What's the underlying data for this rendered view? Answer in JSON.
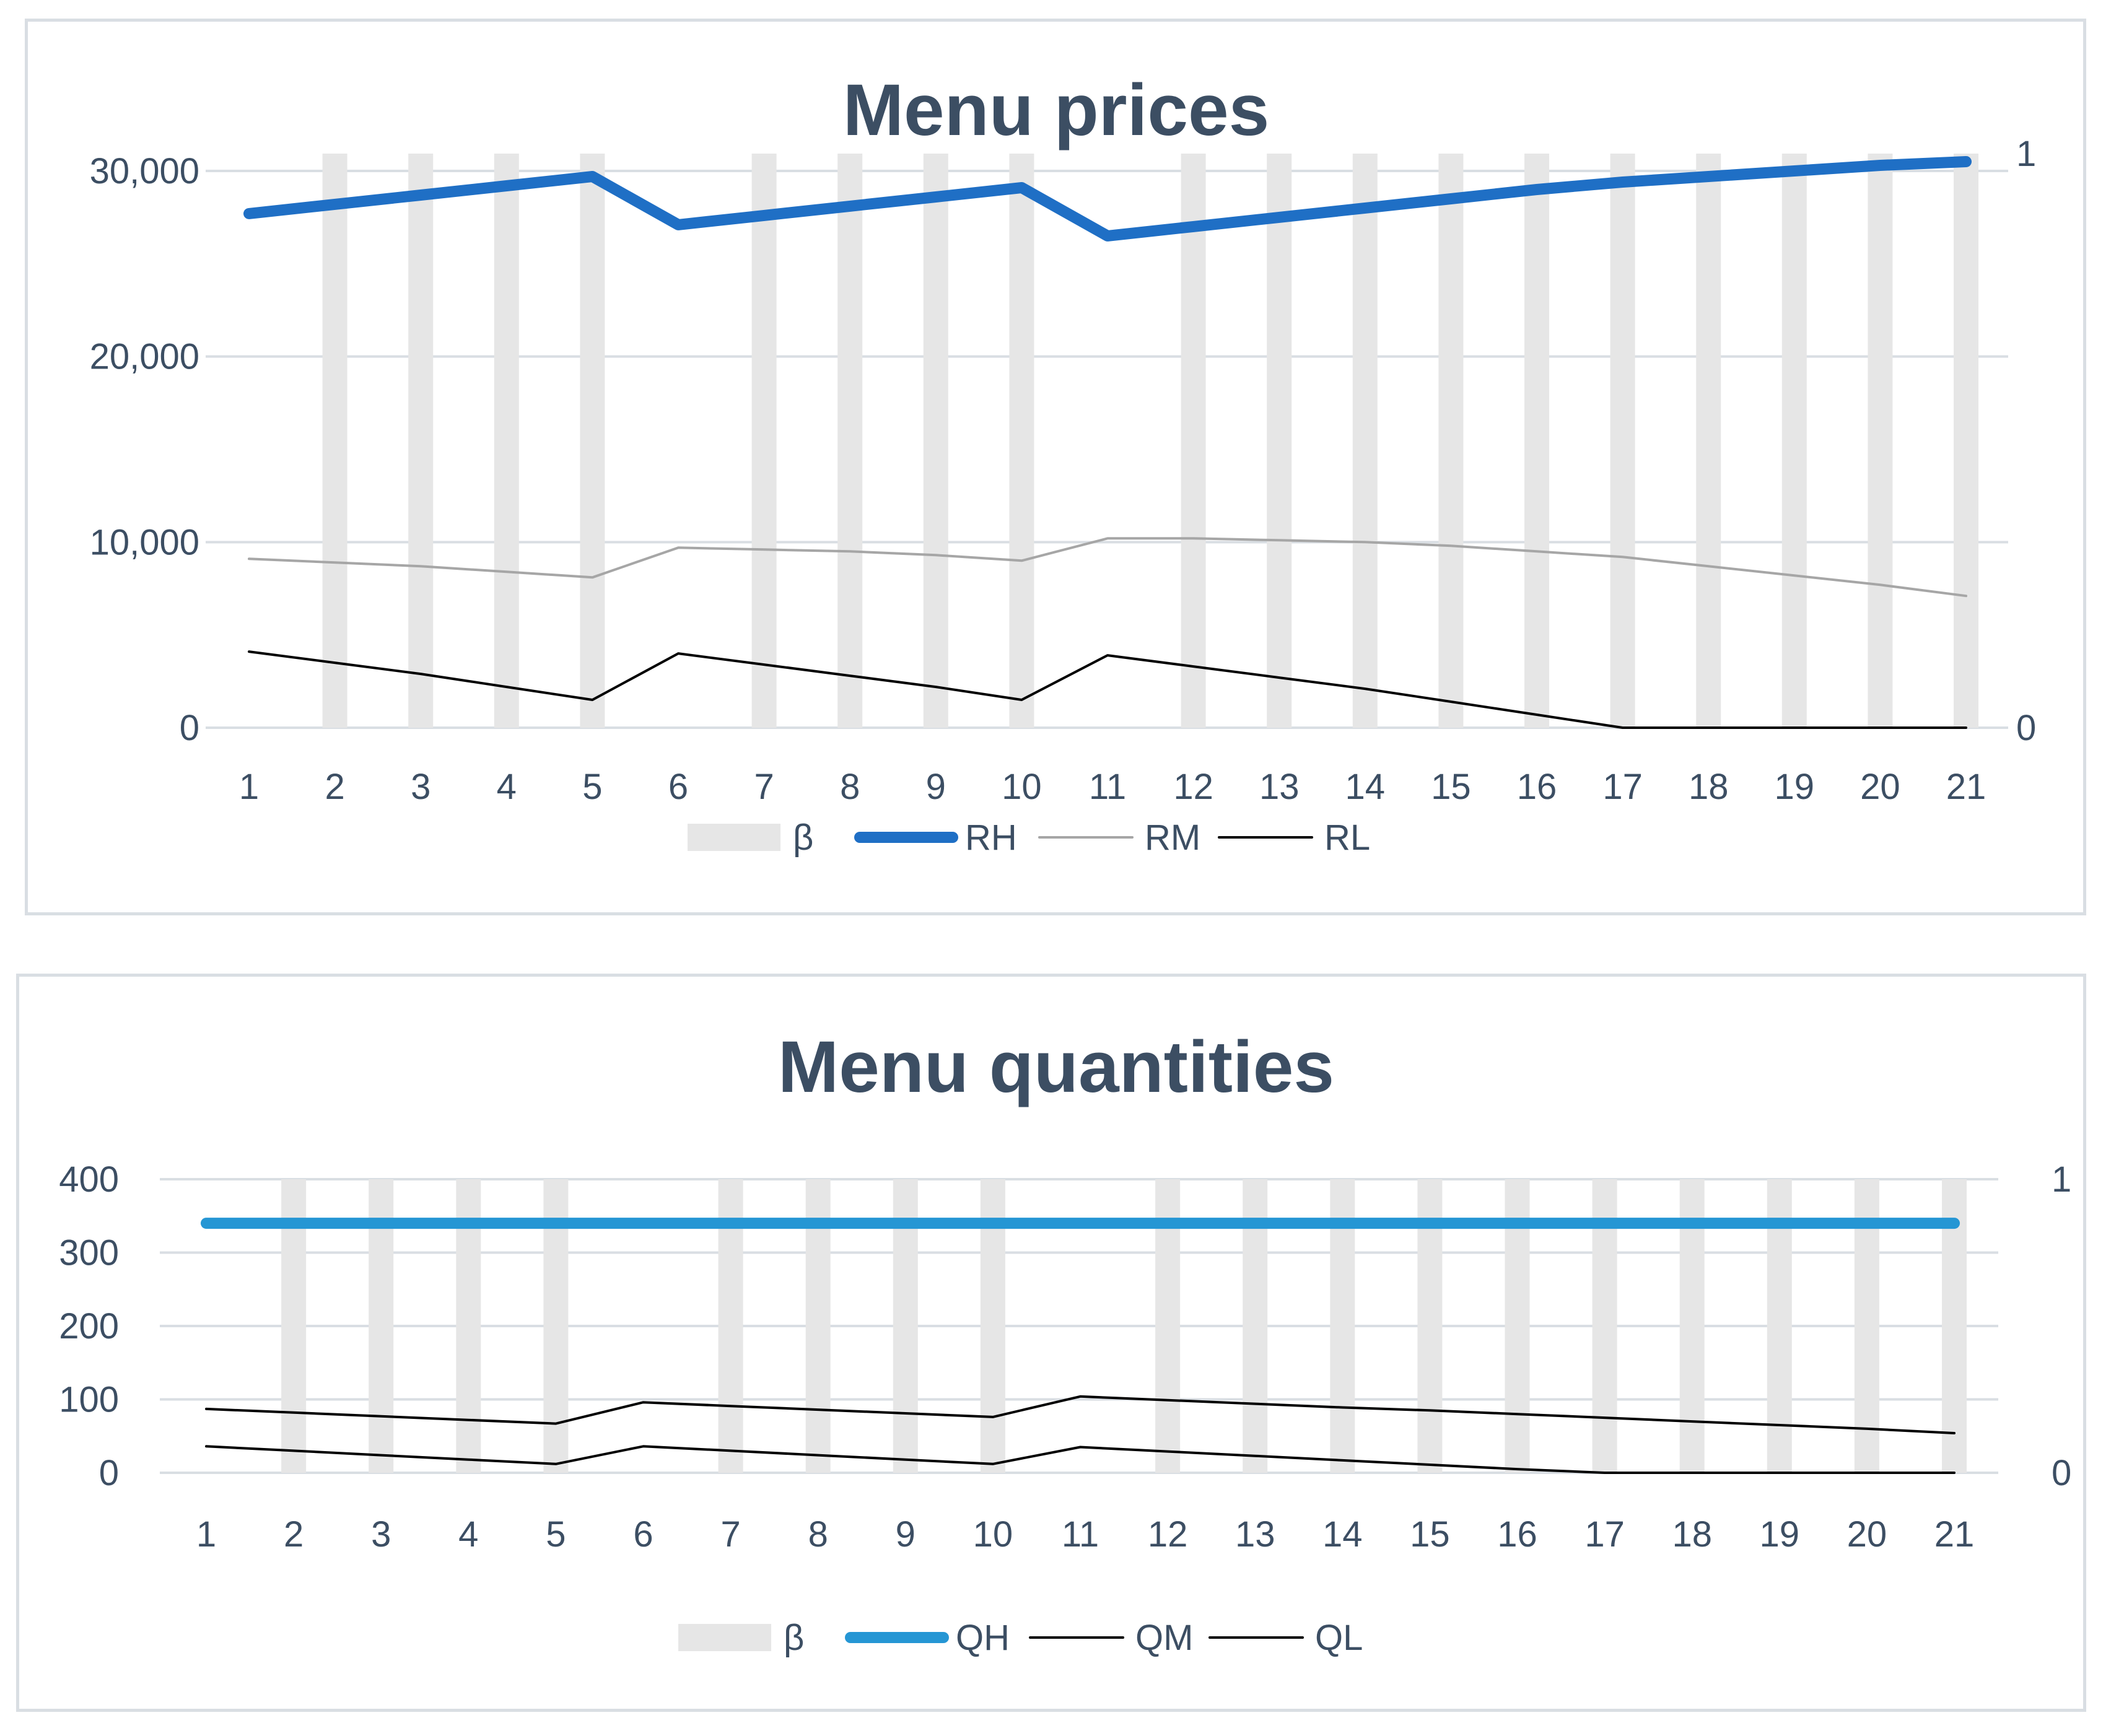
{
  "chart_data": [
    {
      "type": "line",
      "title": "Menu prices",
      "categories": [
        "1",
        "2",
        "3",
        "4",
        "5",
        "6",
        "7",
        "8",
        "9",
        "10",
        "11",
        "12",
        "13",
        "14",
        "15",
        "16",
        "17",
        "18",
        "19",
        "20",
        "21"
      ],
      "ylim": [
        0,
        30000
      ],
      "y_ticks": [
        "0",
        "10,000",
        "20,000",
        "30,000"
      ],
      "y2lim": [
        0,
        1
      ],
      "y2_ticks": [
        "0",
        "1"
      ],
      "grid": true,
      "legend_position": "bottom",
      "series": [
        {
          "name": "β",
          "kind": "bar",
          "axis": "secondary",
          "color": "#e6e6e6",
          "values": [
            0,
            1,
            1,
            1,
            1,
            0,
            1,
            1,
            1,
            1,
            0,
            1,
            1,
            1,
            1,
            1,
            1,
            1,
            1,
            1,
            1
          ]
        },
        {
          "name": "RH",
          "kind": "line",
          "axis": "primary",
          "color": "#1f6fc5",
          "width": "thick",
          "values": [
            27700,
            28200,
            28700,
            29200,
            29700,
            27100,
            27600,
            28100,
            28600,
            29100,
            26500,
            27000,
            27500,
            28000,
            28500,
            29000,
            29400,
            29700,
            30000,
            30300,
            30500
          ]
        },
        {
          "name": "RM",
          "kind": "line",
          "axis": "primary",
          "color": "#a6a6a6",
          "width": "thin",
          "values": [
            9100,
            8900,
            8700,
            8400,
            8100,
            9700,
            9600,
            9500,
            9300,
            9000,
            10200,
            10200,
            10100,
            10000,
            9800,
            9500,
            9200,
            8700,
            8200,
            7700,
            7100
          ]
        },
        {
          "name": "RL",
          "kind": "line",
          "axis": "primary",
          "color": "#000000",
          "width": "thin",
          "values": [
            4100,
            3500,
            2900,
            2200,
            1500,
            4000,
            3400,
            2800,
            2200,
            1500,
            3900,
            3300,
            2700,
            2100,
            1400,
            700,
            0,
            0,
            0,
            0,
            0
          ]
        }
      ]
    },
    {
      "type": "line",
      "title": "Menu quantities",
      "categories": [
        "1",
        "2",
        "3",
        "4",
        "5",
        "6",
        "7",
        "8",
        "9",
        "10",
        "11",
        "12",
        "13",
        "14",
        "15",
        "16",
        "17",
        "18",
        "19",
        "20",
        "21"
      ],
      "ylim": [
        0,
        400
      ],
      "y_ticks": [
        "0",
        "100",
        "200",
        "300",
        "400"
      ],
      "y2lim": [
        0,
        1
      ],
      "y2_ticks": [
        "0",
        "1"
      ],
      "grid": true,
      "legend_position": "bottom",
      "series": [
        {
          "name": "β",
          "kind": "bar",
          "axis": "secondary",
          "color": "#e6e6e6",
          "values": [
            0,
            1,
            1,
            1,
            1,
            0,
            1,
            1,
            1,
            1,
            0,
            1,
            1,
            1,
            1,
            1,
            1,
            1,
            1,
            1,
            1
          ]
        },
        {
          "name": "QH",
          "kind": "line",
          "axis": "primary",
          "color": "#2596d4",
          "width": "thick",
          "values": [
            340,
            340,
            340,
            340,
            340,
            340,
            340,
            340,
            340,
            340,
            340,
            340,
            340,
            340,
            340,
            340,
            340,
            340,
            340,
            340,
            340
          ]
        },
        {
          "name": "QM",
          "kind": "line",
          "axis": "primary",
          "color": "#000000",
          "width": "thin",
          "values": [
            87,
            82,
            77,
            72,
            67,
            96,
            91,
            86,
            81,
            76,
            104,
            99,
            94,
            89,
            85,
            80,
            75,
            70,
            65,
            60,
            54
          ]
        },
        {
          "name": "QL",
          "kind": "line",
          "axis": "primary",
          "color": "#000000",
          "width": "thin",
          "values": [
            36,
            30,
            24,
            18,
            12,
            36,
            30,
            24,
            18,
            12,
            35,
            29,
            23,
            17,
            11,
            5,
            0,
            0,
            0,
            0,
            0
          ]
        }
      ]
    }
  ]
}
